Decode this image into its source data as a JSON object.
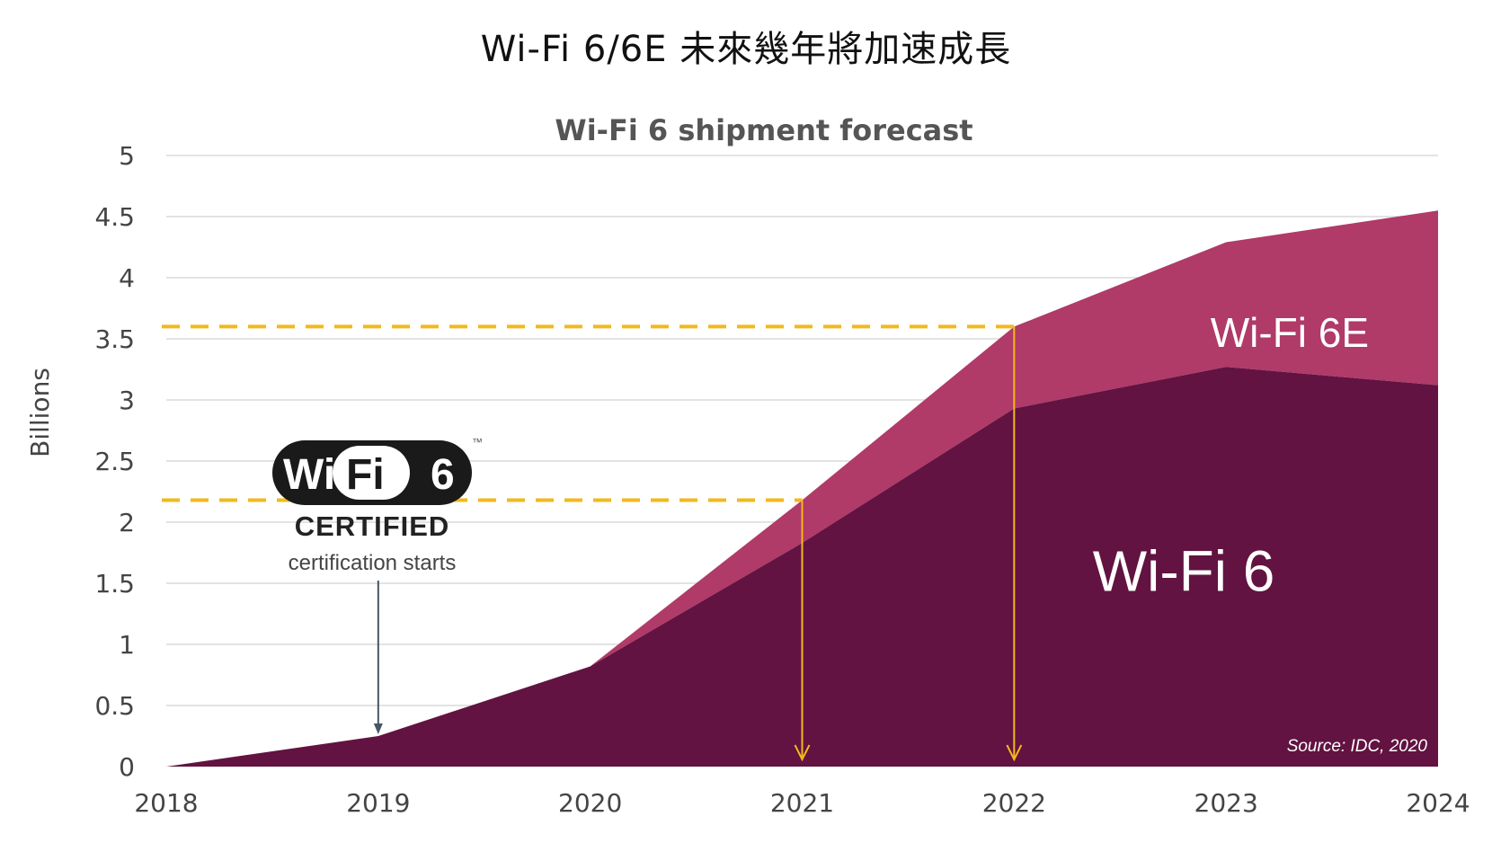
{
  "page_title": "Wi-Fi 6/6E 未來幾年將加速成長",
  "colors": {
    "wifi6": "#621341",
    "wifi6e": "#b03a68",
    "guide": "#f2b81c",
    "grid": "#e3e3e3"
  },
  "chart_data": {
    "type": "area",
    "stacked": true,
    "title": "Wi-Fi 6 shipment forecast",
    "xlabel": "",
    "ylabel": "Billions",
    "x": [
      2018,
      2019,
      2020,
      2021,
      2022,
      2023,
      2024
    ],
    "ylim": [
      0,
      5
    ],
    "yticks": [
      "0",
      "0.5",
      "1",
      "1.5",
      "2",
      "2.5",
      "3",
      "3.5",
      "4",
      "4.5",
      "5"
    ],
    "grid": true,
    "series": [
      {
        "name": "Wi-Fi 6",
        "values": [
          0,
          0.25,
          0.82,
          1.83,
          2.93,
          3.27,
          3.12
        ]
      },
      {
        "name": "Wi-Fi 6E",
        "values": [
          0,
          0,
          0,
          0.35,
          0.67,
          1.02,
          1.43
        ]
      }
    ],
    "annotations": {
      "logo": {
        "brand_left": "Wi",
        "brand_right": "Fi",
        "number": "6",
        "tm": "™",
        "certified": "CERTIFIED"
      },
      "certification_note": "certification starts",
      "certification_year": 2019,
      "guide_lines": [
        {
          "x": 2021,
          "y": 2.18
        },
        {
          "x": 2022,
          "y": 3.6
        }
      ],
      "source": "Source: IDC, 2020"
    }
  }
}
